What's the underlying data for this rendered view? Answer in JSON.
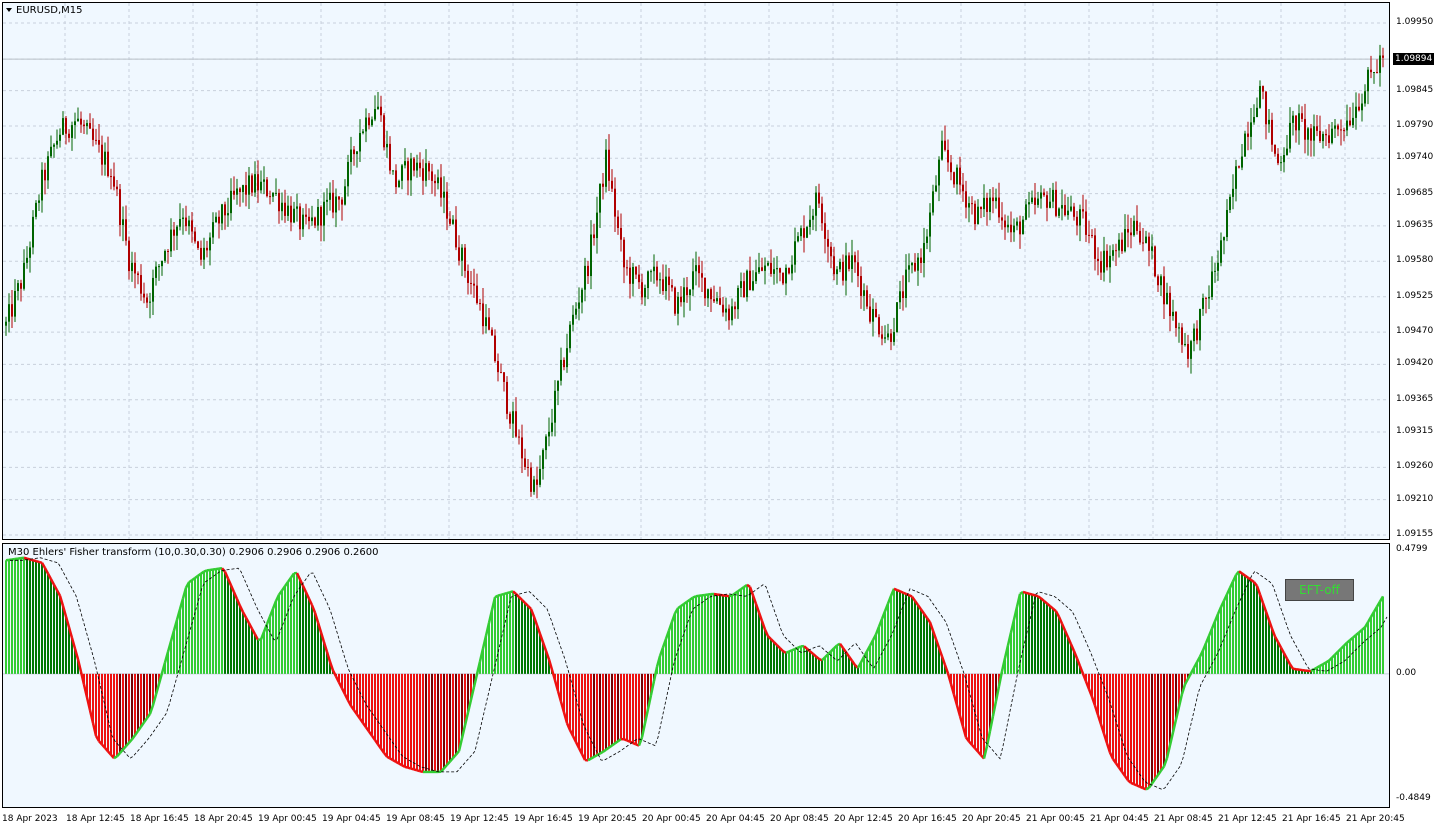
{
  "chart": {
    "title": "EURUSD,M15",
    "current_price": "1.09894",
    "price_ticks": [
      "1.09950",
      "1.09894",
      "1.09845",
      "1.09790",
      "1.09740",
      "1.09685",
      "1.09635",
      "1.09580",
      "1.09525",
      "1.09470",
      "1.09420",
      "1.09365",
      "1.09315",
      "1.09260",
      "1.09210",
      "1.09155"
    ],
    "price_range": [
      1.0914,
      1.0999
    ],
    "colors": {
      "bull": "#006400",
      "bear": "#b00000",
      "bg": "#f0f8ff",
      "grid": "#c8d0dc"
    }
  },
  "indicator": {
    "title": "M30 Ehlers' Fisher transform (10,0.30,0.30) 0.2906 0.2906 0.2906 0.2600",
    "ticks": [
      "0.4799",
      "0.00",
      "-0.4849"
    ],
    "range": [
      -0.4849,
      0.4799
    ],
    "button_label": "EFT-off",
    "colors": {
      "up_light": "#33cc33",
      "up_dark": "#007700",
      "dn_light": "#ee1111",
      "dn_dark": "#770000"
    }
  },
  "time_axis": [
    "18 Apr 2023",
    "18 Apr 12:45",
    "18 Apr 16:45",
    "18 Apr 20:45",
    "19 Apr 00:45",
    "19 Apr 04:45",
    "19 Apr 08:45",
    "19 Apr 12:45",
    "19 Apr 16:45",
    "19 Apr 20:45",
    "20 Apr 00:45",
    "20 Apr 04:45",
    "20 Apr 08:45",
    "20 Apr 12:45",
    "20 Apr 16:45",
    "20 Apr 20:45",
    "21 Apr 00:45",
    "21 Apr 04:45",
    "21 Apr 08:45",
    "21 Apr 12:45",
    "21 Apr 16:45",
    "21 Apr 20:45"
  ],
  "chart_data": {
    "type": "candlestick",
    "symbol": "EURUSD",
    "timeframe": "M15",
    "close_path": [
      1.0948,
      1.0956,
      1.097,
      1.0978,
      1.098,
      1.0976,
      1.0972,
      1.0958,
      1.0952,
      1.096,
      1.0966,
      1.0958,
      1.0964,
      1.0968,
      1.097,
      1.0969,
      1.0966,
      1.0963,
      1.0966,
      1.0968,
      1.0978,
      1.0983,
      1.097,
      1.0973,
      1.0972,
      1.0966,
      1.0957,
      1.095,
      1.094,
      1.093,
      1.0922,
      1.0935,
      1.0948,
      1.0958,
      1.0974,
      1.0957,
      1.0954,
      1.0956,
      1.0951,
      1.0956,
      1.0953,
      1.095,
      1.0955,
      1.0957,
      1.0956,
      1.0962,
      1.0968,
      1.0956,
      1.0958,
      1.095,
      1.0946,
      1.0955,
      1.096,
      1.0975,
      1.097,
      1.0965,
      1.0968,
      1.0962,
      1.0966,
      1.0968,
      1.0966,
      1.0964,
      1.0958,
      1.096,
      1.0964,
      1.0958,
      1.095,
      1.0944,
      1.0952,
      1.0962,
      1.0976,
      1.0985,
      1.0973,
      1.098,
      1.0977,
      1.0978,
      1.098,
      1.0985,
      1.099
    ],
    "y_range": [
      1.09155,
      1.0995
    ],
    "indicator": {
      "name": "M30 Ehlers' Fisher transform",
      "params": "(10,0.30,0.30)",
      "values_shown": [
        0.2906,
        0.2906,
        0.2906,
        0.26
      ],
      "y_range": [
        -0.4849,
        0.4799
      ],
      "path": [
        0.44,
        0.45,
        0.43,
        0.3,
        0.05,
        -0.25,
        -0.33,
        -0.25,
        -0.15,
        0.1,
        0.35,
        0.4,
        0.41,
        0.25,
        0.12,
        0.3,
        0.4,
        0.25,
        0.02,
        -0.12,
        -0.22,
        -0.32,
        -0.36,
        -0.38,
        -0.38,
        -0.3,
        0.0,
        0.3,
        0.32,
        0.25,
        0.05,
        -0.2,
        -0.34,
        -0.3,
        -0.25,
        -0.28,
        0.05,
        0.25,
        0.3,
        0.31,
        0.3,
        0.35,
        0.15,
        0.08,
        0.11,
        0.05,
        0.12,
        0.02,
        0.15,
        0.33,
        0.3,
        0.2,
        0.0,
        -0.25,
        -0.33,
        0.02,
        0.32,
        0.3,
        0.24,
        0.08,
        -0.1,
        -0.32,
        -0.42,
        -0.45,
        -0.35,
        -0.05,
        0.08,
        0.25,
        0.4,
        0.35,
        0.15,
        0.02,
        0.01,
        0.05,
        0.12,
        0.18,
        0.3
      ]
    }
  }
}
